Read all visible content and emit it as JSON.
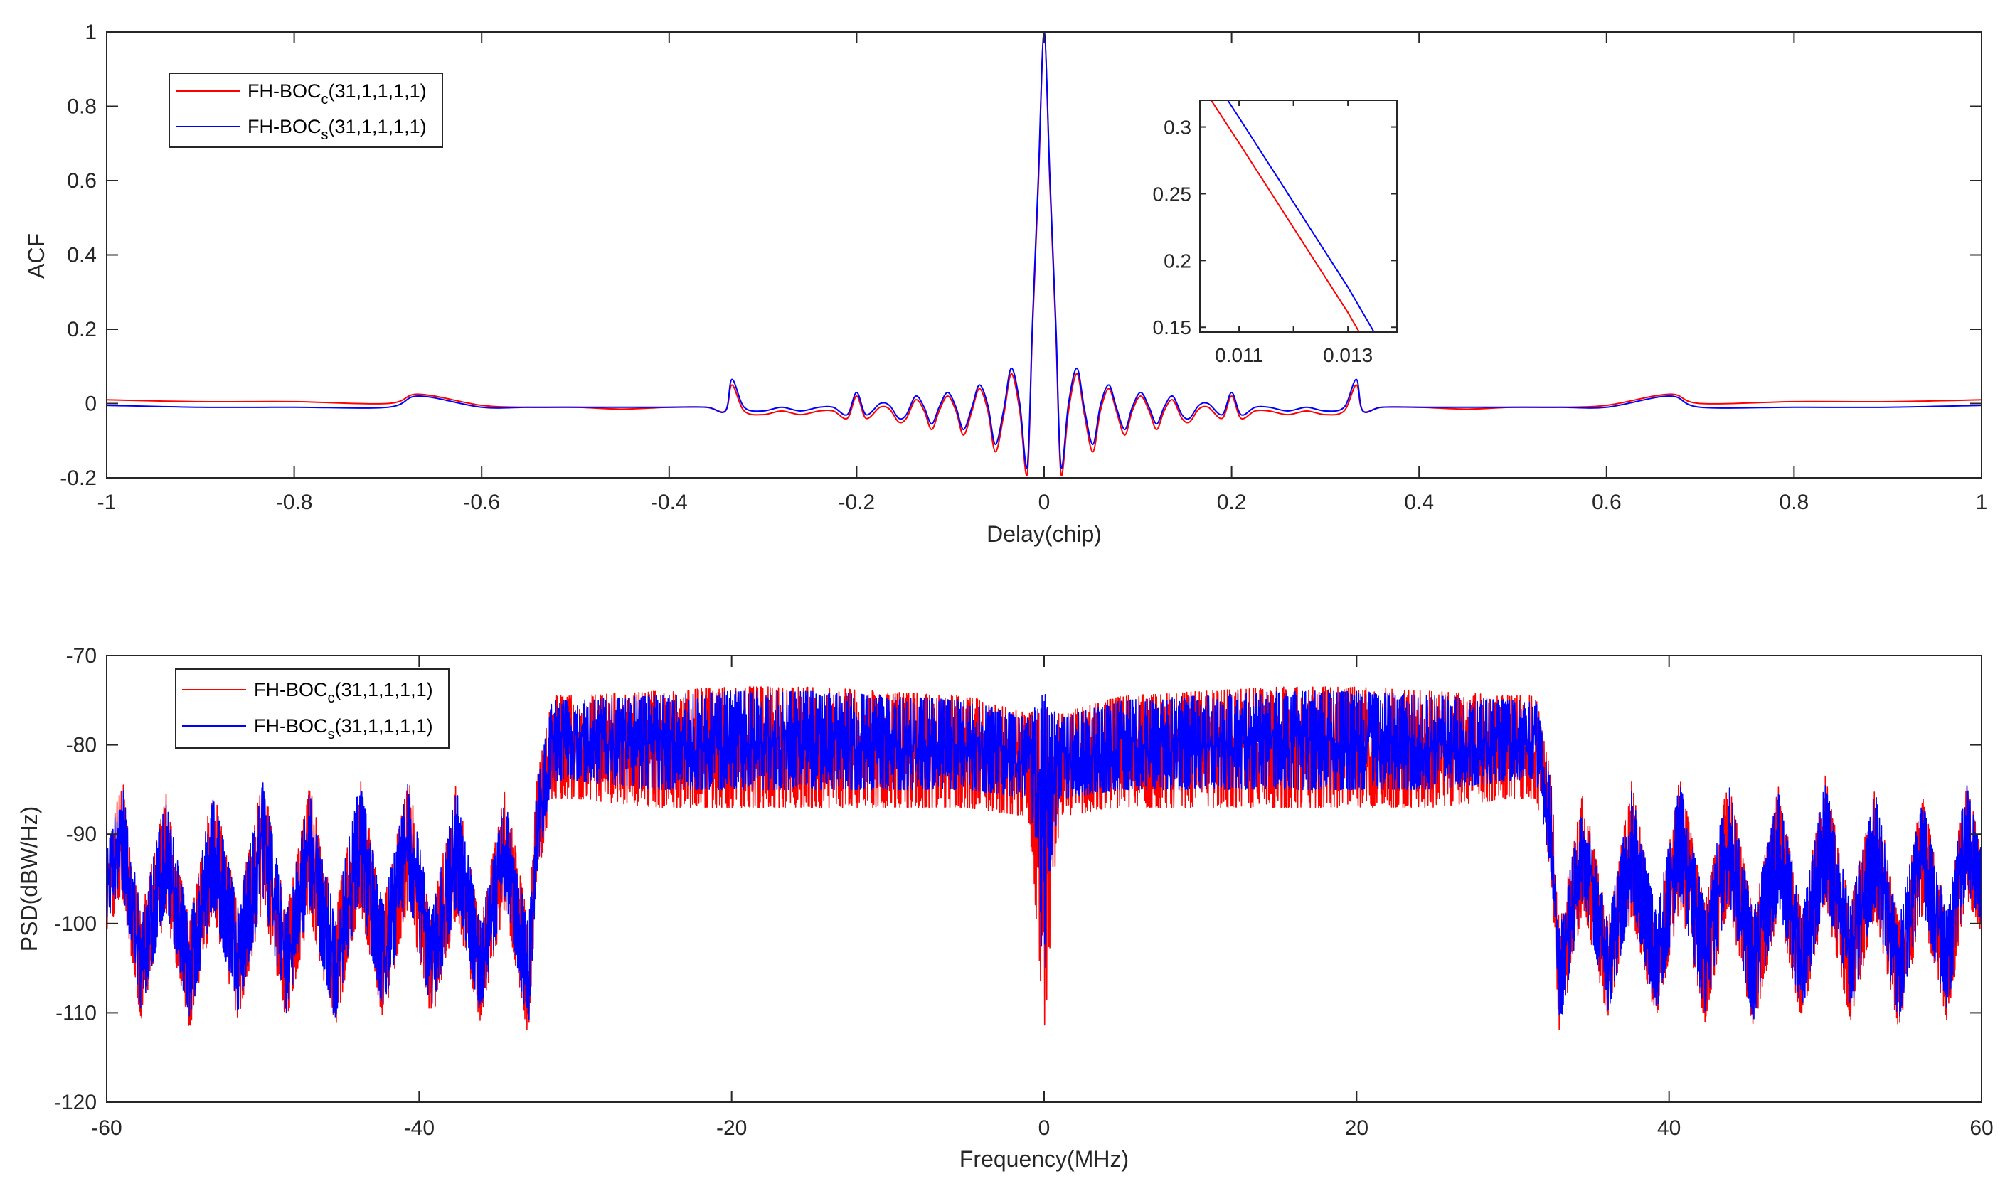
{
  "chart_data": [
    {
      "type": "line",
      "xlabel": "Delay(chip)",
      "ylabel": "ACF",
      "xlim": [
        -1,
        1
      ],
      "ylim": [
        -0.2,
        1
      ],
      "x_tick_labels": [
        "-1",
        "-0.8",
        "-0.6",
        "-0.4",
        "-0.2",
        "0",
        "0.2",
        "0.4",
        "0.6",
        "0.8",
        "1"
      ],
      "x_ticks": [
        -1,
        -0.8,
        -0.6,
        -0.4,
        -0.2,
        0,
        0.2,
        0.4,
        0.6,
        0.8,
        1
      ],
      "y_tick_labels": [
        "-0.2",
        "0",
        "0.2",
        "0.4",
        "0.6",
        "0.8",
        "1"
      ],
      "y_ticks": [
        -0.2,
        0,
        0.2,
        0.4,
        0.6,
        0.8,
        1
      ],
      "grid": false,
      "legend_position": "top-left",
      "x": [
        -1.0,
        -0.9,
        -0.8,
        -0.7,
        -0.667,
        -0.6,
        -0.55,
        -0.5,
        -0.45,
        -0.4,
        -0.36,
        -0.34,
        -0.333,
        -0.32,
        -0.3,
        -0.28,
        -0.26,
        -0.24,
        -0.225,
        -0.21,
        -0.2,
        -0.19,
        -0.175,
        -0.165,
        -0.155,
        -0.147,
        -0.137,
        -0.128,
        -0.12,
        -0.112,
        -0.103,
        -0.094,
        -0.086,
        -0.077,
        -0.069,
        -0.06,
        -0.052,
        -0.043,
        -0.035,
        -0.026,
        -0.018,
        -0.013,
        -0.011,
        -0.006,
        0,
        0.006,
        0.011,
        0.013,
        0.018,
        0.026,
        0.035,
        0.043,
        0.052,
        0.06,
        0.069,
        0.077,
        0.086,
        0.094,
        0.103,
        0.112,
        0.12,
        0.128,
        0.137,
        0.147,
        0.155,
        0.165,
        0.175,
        0.19,
        0.2,
        0.21,
        0.225,
        0.24,
        0.26,
        0.28,
        0.3,
        0.32,
        0.333,
        0.34,
        0.36,
        0.4,
        0.45,
        0.5,
        0.55,
        0.6,
        0.667,
        0.7,
        0.8,
        0.9,
        1.0
      ],
      "series": [
        {
          "name": {
            "base": "FH-BOC",
            "sub": "c",
            "suffix": "(31,1,1,1,1)"
          },
          "color": "#ff0000",
          "values": [
            0.01,
            0.005,
            0.005,
            0.0,
            0.025,
            -0.005,
            -0.01,
            -0.01,
            -0.015,
            -0.01,
            -0.01,
            -0.02,
            0.05,
            -0.02,
            -0.03,
            -0.02,
            -0.03,
            -0.02,
            -0.02,
            -0.04,
            0.02,
            -0.04,
            -0.01,
            -0.015,
            -0.05,
            -0.04,
            0.01,
            -0.02,
            -0.07,
            -0.02,
            0.02,
            -0.02,
            -0.085,
            -0.02,
            0.04,
            -0.02,
            -0.13,
            -0.03,
            0.08,
            -0.02,
            -0.19,
            0.161,
            0.288,
            0.6,
            1.0,
            0.6,
            0.288,
            0.161,
            -0.19,
            -0.02,
            0.08,
            -0.03,
            -0.13,
            -0.02,
            0.04,
            -0.02,
            -0.085,
            -0.02,
            0.02,
            -0.02,
            -0.07,
            -0.02,
            0.01,
            -0.04,
            -0.05,
            -0.015,
            -0.01,
            -0.04,
            0.02,
            -0.04,
            -0.02,
            -0.02,
            -0.03,
            -0.02,
            -0.03,
            -0.02,
            0.05,
            -0.02,
            -0.01,
            -0.01,
            -0.015,
            -0.01,
            -0.01,
            -0.005,
            0.025,
            0.0,
            0.005,
            0.005,
            0.01
          ]
        },
        {
          "name": {
            "base": "FH-BOC",
            "sub": "s",
            "suffix": "(31,1,1,1,1)"
          },
          "color": "#0000ff",
          "values": [
            -0.005,
            -0.01,
            -0.01,
            -0.01,
            0.02,
            -0.01,
            -0.01,
            -0.01,
            -0.01,
            -0.01,
            -0.01,
            -0.02,
            0.065,
            -0.01,
            -0.02,
            -0.01,
            -0.02,
            -0.01,
            -0.01,
            -0.03,
            0.03,
            -0.03,
            0.0,
            -0.005,
            -0.04,
            -0.03,
            0.02,
            -0.01,
            -0.055,
            -0.01,
            0.03,
            -0.01,
            -0.07,
            -0.01,
            0.05,
            -0.005,
            -0.11,
            -0.015,
            0.095,
            0.0,
            -0.17,
            0.18,
            0.307,
            0.62,
            1.0,
            0.62,
            0.307,
            0.18,
            -0.17,
            0.0,
            0.095,
            -0.015,
            -0.11,
            -0.005,
            0.05,
            -0.01,
            -0.07,
            -0.01,
            0.03,
            -0.01,
            -0.055,
            -0.01,
            0.02,
            -0.03,
            -0.04,
            -0.005,
            0.0,
            -0.03,
            0.03,
            -0.03,
            -0.01,
            -0.01,
            -0.02,
            -0.01,
            -0.02,
            -0.01,
            0.065,
            -0.02,
            -0.01,
            -0.01,
            -0.01,
            -0.01,
            -0.01,
            -0.01,
            0.02,
            -0.01,
            -0.01,
            -0.01,
            -0.005
          ]
        }
      ],
      "inset": {
        "xlim": [
          0.01028,
          0.0139
        ],
        "ylim": [
          0.1464,
          0.32
        ],
        "x_ticks": [
          0.011,
          0.012,
          0.013
        ],
        "x_tick_labels": [
          "0.011",
          "",
          "0.013"
        ],
        "y_ticks": [
          0.15,
          0.2,
          0.25,
          0.3
        ],
        "y_tick_labels": [
          "0.15",
          "0.2",
          "0.25",
          "0.3"
        ]
      }
    },
    {
      "type": "line",
      "xlabel": "Frequency(MHz)",
      "ylabel": "PSD(dBW/Hz)",
      "xlim": [
        -60,
        60
      ],
      "ylim": [
        -120,
        -70
      ],
      "x_ticks": [
        -60,
        -40,
        -20,
        0,
        20,
        40,
        60
      ],
      "x_tick_labels": [
        "-60",
        "-40",
        "-20",
        "0",
        "20",
        "40",
        "60"
      ],
      "y_ticks": [
        -120,
        -110,
        -100,
        -90,
        -80,
        -70
      ],
      "y_tick_labels": [
        "-120",
        "-110",
        "-100",
        "-90",
        "-80",
        "-70"
      ],
      "grid": false,
      "legend_position": "top-left",
      "freq": [
        -60,
        -59,
        -57.8,
        -56.2,
        -54.7,
        -53.2,
        -51.6,
        -50,
        -48.5,
        -47,
        -45.4,
        -43.8,
        -42.3,
        -40.7,
        -39.2,
        -37.6,
        -36.1,
        -34.5,
        -33,
        -32.5,
        -31.5,
        -30,
        -25,
        -20,
        -15,
        -10,
        -5,
        -1,
        -0.3,
        0,
        0.3,
        1,
        5,
        10,
        15,
        20,
        25,
        30,
        31.5,
        32.5,
        33,
        34.5,
        36.1,
        37.6,
        39.2,
        40.7,
        42.3,
        43.8,
        45.4,
        47,
        48.5,
        50,
        51.6,
        53.2,
        54.7,
        56.2,
        57.8,
        59,
        60
      ],
      "series": [
        {
          "name": {
            "base": "FH-BOC",
            "sub": "c",
            "suffix": "(31,1,1,1,1)"
          },
          "color": "#ff0000",
          "upper": [
            -92,
            -83.5,
            -99,
            -85.5,
            -100,
            -84.5,
            -98,
            -83.5,
            -99,
            -84.5,
            -99,
            -83.5,
            -98,
            -83.5,
            -99,
            -84,
            -100,
            -85,
            -100,
            -84,
            -74.5,
            -74.5,
            -74,
            -73.5,
            -73.5,
            -74,
            -74.5,
            -76.5,
            -76,
            -76,
            -76,
            -76.5,
            -74.5,
            -74,
            -73.5,
            -73.5,
            -74,
            -74.5,
            -74.5,
            -84,
            -100,
            -85,
            -100,
            -84,
            -99,
            -83.5,
            -98,
            -83.5,
            -99,
            -84.5,
            -99,
            -83.5,
            -98,
            -84.5,
            -100,
            -85.5,
            -99,
            -83.5,
            -92
          ],
          "lower": [
            -101,
            -97,
            -111,
            -99,
            -112,
            -99,
            -111,
            -98,
            -111,
            -99,
            -112,
            -98,
            -111,
            -98,
            -111,
            -99,
            -111,
            -98,
            -113,
            -96,
            -86,
            -86,
            -87,
            -87,
            -87,
            -87,
            -87,
            -88,
            -105,
            -113,
            -105,
            -88,
            -87,
            -87,
            -87,
            -87,
            -87,
            -86,
            -86,
            -96,
            -113,
            -98,
            -111,
            -99,
            -111,
            -98,
            -111,
            -98,
            -112,
            -99,
            -111,
            -98,
            -111,
            -99,
            -112,
            -99,
            -111,
            -97,
            -101
          ]
        },
        {
          "name": {
            "base": "FH-BOC",
            "sub": "s",
            "suffix": "(31,1,1,1,1)"
          },
          "color": "#0000ff",
          "upper": [
            -92,
            -84,
            -99,
            -86,
            -100,
            -85,
            -98,
            -84,
            -99,
            -85,
            -99,
            -84,
            -98,
            -84,
            -99,
            -85,
            -100,
            -86,
            -100,
            -85,
            -75,
            -75,
            -74.5,
            -74,
            -74,
            -74.5,
            -75,
            -77,
            -75,
            -74,
            -75,
            -77,
            -75,
            -74.5,
            -74,
            -74,
            -74.5,
            -75,
            -75,
            -85,
            -100,
            -86,
            -100,
            -85,
            -99,
            -84,
            -98,
            -84,
            -99,
            -85,
            -99,
            -84,
            -98,
            -85,
            -100,
            -86,
            -99,
            -84,
            -92
          ],
          "lower": [
            -100,
            -96,
            -110,
            -98,
            -111,
            -98,
            -110,
            -97,
            -110,
            -98,
            -111,
            -97,
            -110,
            -97,
            -110,
            -98,
            -110,
            -97,
            -112,
            -95,
            -84,
            -84,
            -85,
            -85,
            -85,
            -85,
            -85,
            -86,
            -95,
            -112,
            -95,
            -86,
            -85,
            -85,
            -85,
            -85,
            -85,
            -84,
            -84,
            -95,
            -112,
            -97,
            -110,
            -98,
            -110,
            -97,
            -110,
            -97,
            -111,
            -98,
            -110,
            -97,
            -110,
            -98,
            -111,
            -98,
            -110,
            -96,
            -100
          ]
        }
      ]
    }
  ]
}
